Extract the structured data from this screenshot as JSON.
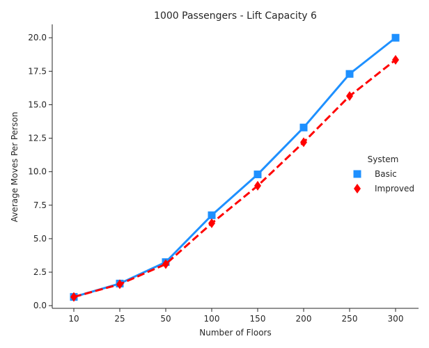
{
  "chart_data": {
    "type": "line",
    "title": "1000 Passengers - Lift Capacity 6",
    "xlabel": "Number of Floors",
    "ylabel": "Average Moves Per Person",
    "categories": [
      "10",
      "25",
      "50",
      "100",
      "150",
      "200",
      "250",
      "300"
    ],
    "ylim": [
      -0.2,
      21
    ],
    "yticks": [
      "0.0",
      "2.5",
      "5.0",
      "7.5",
      "10.0",
      "12.5",
      "15.0",
      "17.5",
      "20.0"
    ],
    "ytick_values": [
      0,
      2.5,
      5,
      7.5,
      10,
      12.5,
      15,
      17.5,
      20
    ],
    "grid": false,
    "legend": {
      "title": "System",
      "placement": "right"
    },
    "series": [
      {
        "name": "Basic",
        "color": "#1e90ff",
        "marker": "square",
        "linestyle": "solid",
        "values": [
          0.65,
          1.65,
          3.25,
          6.75,
          9.8,
          13.3,
          17.3,
          20.0
        ]
      },
      {
        "name": "Improved",
        "color": "#ff0000",
        "marker": "diamond",
        "linestyle": "dashed",
        "values": [
          0.65,
          1.6,
          3.1,
          6.15,
          8.95,
          12.2,
          15.65,
          18.35
        ]
      }
    ]
  }
}
